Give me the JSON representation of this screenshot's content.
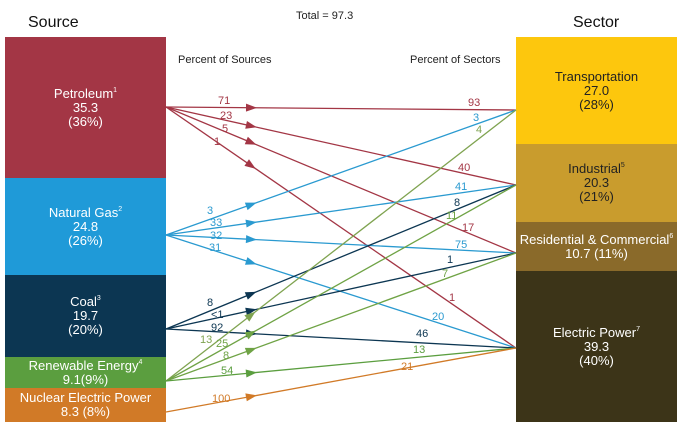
{
  "title_total": "Total = 97.3",
  "source_header": "Source",
  "sector_header": "Sector",
  "percent_sources_label": "Percent of Sources",
  "percent_sectors_label": "Percent of Sectors",
  "sources": [
    {
      "id": "petroleum",
      "name": "Petroleum",
      "note": "1",
      "value": "35.3",
      "pct": "(36%)",
      "color": "#a33645",
      "text": "#fff"
    },
    {
      "id": "natural-gas",
      "name": "Natural Gas",
      "note": "2",
      "value": "24.8",
      "pct": "(26%)",
      "color": "#1f9ad8",
      "text": "#fff"
    },
    {
      "id": "coal",
      "name": "Coal",
      "note": "3",
      "value": "19.7",
      "pct": "(20%)",
      "color": "#0c3652",
      "text": "#fff"
    },
    {
      "id": "renewable",
      "name": "Renewable Energy",
      "note": "4",
      "value": "9.1(9%)",
      "pct": "",
      "color": "#5b9e3f",
      "text": "#fff"
    },
    {
      "id": "nuclear",
      "name": "Nuclear Electric Power",
      "note": "",
      "value": "8.3 (8%)",
      "pct": "",
      "color": "#d17a27",
      "text": "#fff"
    }
  ],
  "sectors": [
    {
      "id": "transportation",
      "name": "Transportation",
      "note": "",
      "value": "27.0",
      "pct": "(28%)",
      "color": "#fdc70d",
      "text": "#222"
    },
    {
      "id": "industrial",
      "name": "Industrial",
      "note": "5",
      "value": "20.3",
      "pct": "(21%)",
      "color": "#c99c2d",
      "text": "#222"
    },
    {
      "id": "res-com",
      "name": "Residential & Commercial",
      "note": "6",
      "value": "10.7 (11%)",
      "pct": "",
      "color": "#8a6a2a",
      "text": "#fff"
    },
    {
      "id": "electric",
      "name": "Electric Power",
      "note": "7",
      "value": "39.3",
      "pct": "(40%)",
      "color": "#3c3418",
      "text": "#fff"
    }
  ],
  "flows": [
    {
      "from": 0,
      "to": 0,
      "source_pct": "71",
      "sector_pct": "93",
      "color": "#a33645"
    },
    {
      "from": 0,
      "to": 1,
      "source_pct": "23",
      "sector_pct": "40",
      "color": "#a33645"
    },
    {
      "from": 0,
      "to": 2,
      "source_pct": "5",
      "sector_pct": "17",
      "color": "#a33645"
    },
    {
      "from": 0,
      "to": 3,
      "source_pct": "1",
      "sector_pct": "1",
      "color": "#a33645"
    },
    {
      "from": 1,
      "to": 0,
      "source_pct": "3",
      "sector_pct": "3",
      "color": "#2a9ad0"
    },
    {
      "from": 1,
      "to": 1,
      "source_pct": "33",
      "sector_pct": "41",
      "color": "#2a9ad0"
    },
    {
      "from": 1,
      "to": 2,
      "source_pct": "32",
      "sector_pct": "75",
      "color": "#2a9ad0"
    },
    {
      "from": 1,
      "to": 3,
      "source_pct": "31",
      "sector_pct": "20",
      "color": "#2a9ad0"
    },
    {
      "from": 2,
      "to": 1,
      "source_pct": "8",
      "sector_pct": "8",
      "color": "#0c3652"
    },
    {
      "from": 2,
      "to": 2,
      "source_pct": "<1",
      "sector_pct": "1",
      "color": "#0c3652"
    },
    {
      "from": 2,
      "to": 3,
      "source_pct": "92",
      "sector_pct": "46",
      "color": "#0c3652"
    },
    {
      "from": 3,
      "to": 0,
      "source_pct": "13",
      "sector_pct": "4",
      "color": "#7fa350"
    },
    {
      "from": 3,
      "to": 1,
      "source_pct": "25",
      "sector_pct": "11",
      "color": "#6fa345"
    },
    {
      "from": 3,
      "to": 2,
      "source_pct": "8",
      "sector_pct": "7",
      "color": "#6fa345"
    },
    {
      "from": 3,
      "to": 3,
      "source_pct": "54",
      "sector_pct": "13",
      "color": "#5b9e3f"
    },
    {
      "from": 4,
      "to": 3,
      "source_pct": "100",
      "sector_pct": "21",
      "color": "#d17a27"
    }
  ]
}
